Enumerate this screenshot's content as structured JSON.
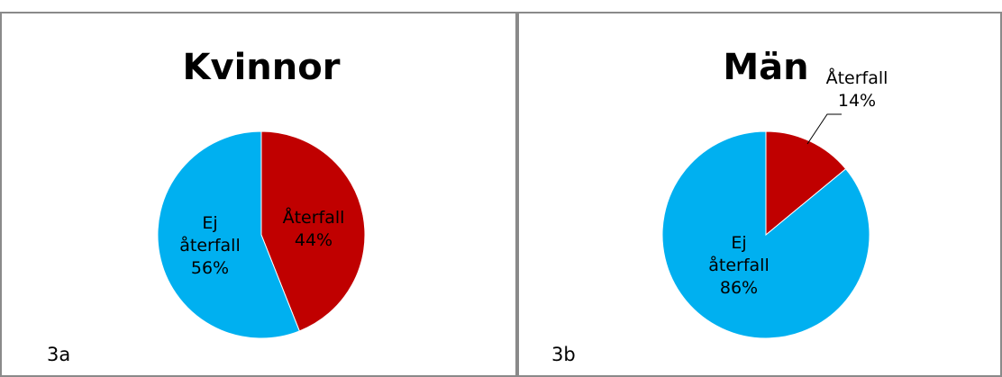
{
  "colors": {
    "aterfall": "#c00000",
    "ej_aterfall": "#00b0f0",
    "border": "#8a8a8a"
  },
  "chart_data": [
    {
      "type": "pie",
      "title": "Kvinnor",
      "panel_label": "3a",
      "start_angle_deg": 0,
      "slices": [
        {
          "name": "Återfall",
          "value": 44,
          "label_lines": [
            "Återfall",
            "44%"
          ]
        },
        {
          "name": "Ej återfall",
          "value": 56,
          "label_lines": [
            "Ej",
            "återfall",
            "56%"
          ]
        }
      ]
    },
    {
      "type": "pie",
      "title": "Män",
      "panel_label": "3b",
      "start_angle_deg": 0,
      "slices": [
        {
          "name": "Återfall",
          "value": 14,
          "label_lines": [
            "Återfall",
            "14%"
          ]
        },
        {
          "name": "Ej återfall",
          "value": 86,
          "label_lines": [
            "Ej",
            "återfall",
            "86%"
          ]
        }
      ]
    }
  ]
}
